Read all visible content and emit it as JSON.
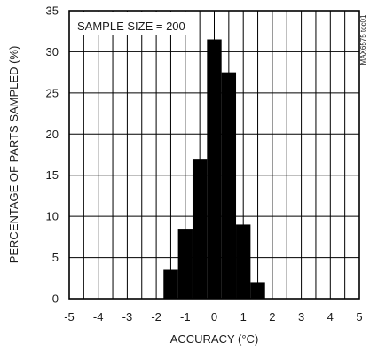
{
  "chart_data": {
    "type": "bar",
    "title": "",
    "xlabel": "ACCURACY (°C)",
    "ylabel": "PERCENTAGE OF PARTS SAMPLED (%)",
    "annotation": "SAMPLE SIZE = 200",
    "figure_id": "MAX6575 toc01",
    "xlim": [
      -5,
      5
    ],
    "ylim": [
      0,
      35
    ],
    "x_ticks": [
      -5,
      -4,
      -3,
      -2,
      -1,
      0,
      1,
      2,
      3,
      4,
      5
    ],
    "y_ticks": [
      0,
      5,
      10,
      15,
      20,
      25,
      30,
      35
    ],
    "bin_width": 0.5,
    "grid": true,
    "bars": [
      {
        "x0": -1.75,
        "x1": -1.25,
        "value": 3.5
      },
      {
        "x0": -1.25,
        "x1": -0.75,
        "value": 8.5
      },
      {
        "x0": -0.75,
        "x1": -0.25,
        "value": 17.0
      },
      {
        "x0": -0.25,
        "x1": 0.25,
        "value": 31.5
      },
      {
        "x0": 0.25,
        "x1": 0.75,
        "value": 27.5
      },
      {
        "x0": 0.75,
        "x1": 1.25,
        "value": 9.0
      },
      {
        "x0": 1.25,
        "x1": 1.75,
        "value": 2.0
      }
    ],
    "bar_color": "#000000",
    "grid_color": "#000000"
  }
}
